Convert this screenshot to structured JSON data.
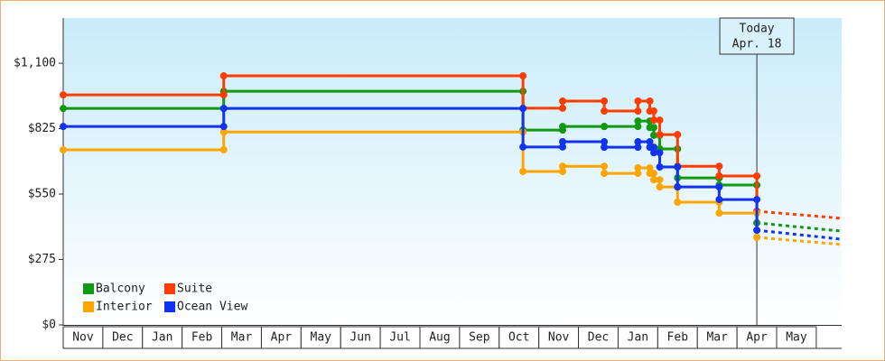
{
  "chart_data": {
    "type": "step",
    "months": [
      "Nov",
      "Dec",
      "Jan",
      "Feb",
      "Mar",
      "Apr",
      "May",
      "Jun",
      "Jul",
      "Aug",
      "Sep",
      "Oct",
      "Nov",
      "Dec",
      "Jan",
      "Feb",
      "Mar",
      "Apr",
      "May"
    ],
    "x": [
      0,
      4.05,
      11.6,
      12.6,
      13.65,
      14.5,
      14.8,
      14.9,
      15.05,
      15.5,
      16.55,
      17.5
    ],
    "forecast_x": 19.64,
    "series": [
      {
        "name": "Balcony",
        "color": "#119911",
        "values": [
          910,
          982,
          819,
          834,
          834,
          857,
          830,
          797,
          740,
          618,
          588,
          429
        ],
        "forecast": 394
      },
      {
        "name": "Suite",
        "color": "#ff3d00",
        "values": [
          967,
          1047,
          911,
          941,
          899,
          941,
          899,
          861,
          800,
          667,
          626,
          478
        ],
        "forecast": 448
      },
      {
        "name": "Interior",
        "color": "#ffa500",
        "values": [
          736,
          811,
          645,
          667,
          637,
          660,
          637,
          610,
          580,
          516,
          470,
          368
        ],
        "forecast": 338
      },
      {
        "name": "Ocean View",
        "color": "#1133ee",
        "values": [
          834,
          910,
          748,
          770,
          747,
          770,
          747,
          724,
          664,
          580,
          527,
          398
        ],
        "forecast": 360
      }
    ],
    "xlim": [
      0,
      19.64
    ],
    "ylim": [
      0,
      1290
    ],
    "yticks": [
      {
        "value": 0,
        "label": "$0"
      },
      {
        "value": 275,
        "label": "$275"
      },
      {
        "value": 550,
        "label": "$550"
      },
      {
        "value": 825,
        "label": "$825"
      },
      {
        "value": 1100,
        "label": "$1,100"
      }
    ],
    "today": {
      "x": 17.5,
      "label": [
        "Today",
        "Apr. 18"
      ]
    }
  }
}
